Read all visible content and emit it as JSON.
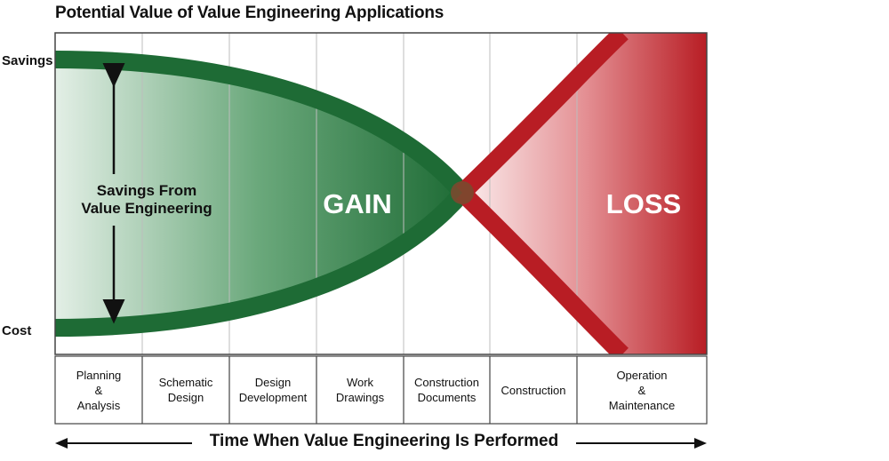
{
  "title": "Potential Value of Value Engineering Applications",
  "y_labels": {
    "top": "Savings",
    "bottom": "Cost"
  },
  "annotation": {
    "line1": "Savings From",
    "line2": "Value Engineering"
  },
  "regions": {
    "gain": "GAIN",
    "loss": "LOSS"
  },
  "phases": [
    "Planning\n&\nAnalysis",
    "Schematic\nDesign",
    "Design\nDevelopment",
    "Work\nDrawings",
    "Construction\nDocuments",
    "Construction",
    "Operation\n&\nMaintenance"
  ],
  "x_axis_label": "Time When Value Engineering Is Performed",
  "colors": {
    "gain": "#1e6b35",
    "loss": "#b81d24"
  },
  "icons": [
    "double-headed-arrow-icon",
    "left-arrow-icon",
    "right-arrow-icon"
  ]
}
